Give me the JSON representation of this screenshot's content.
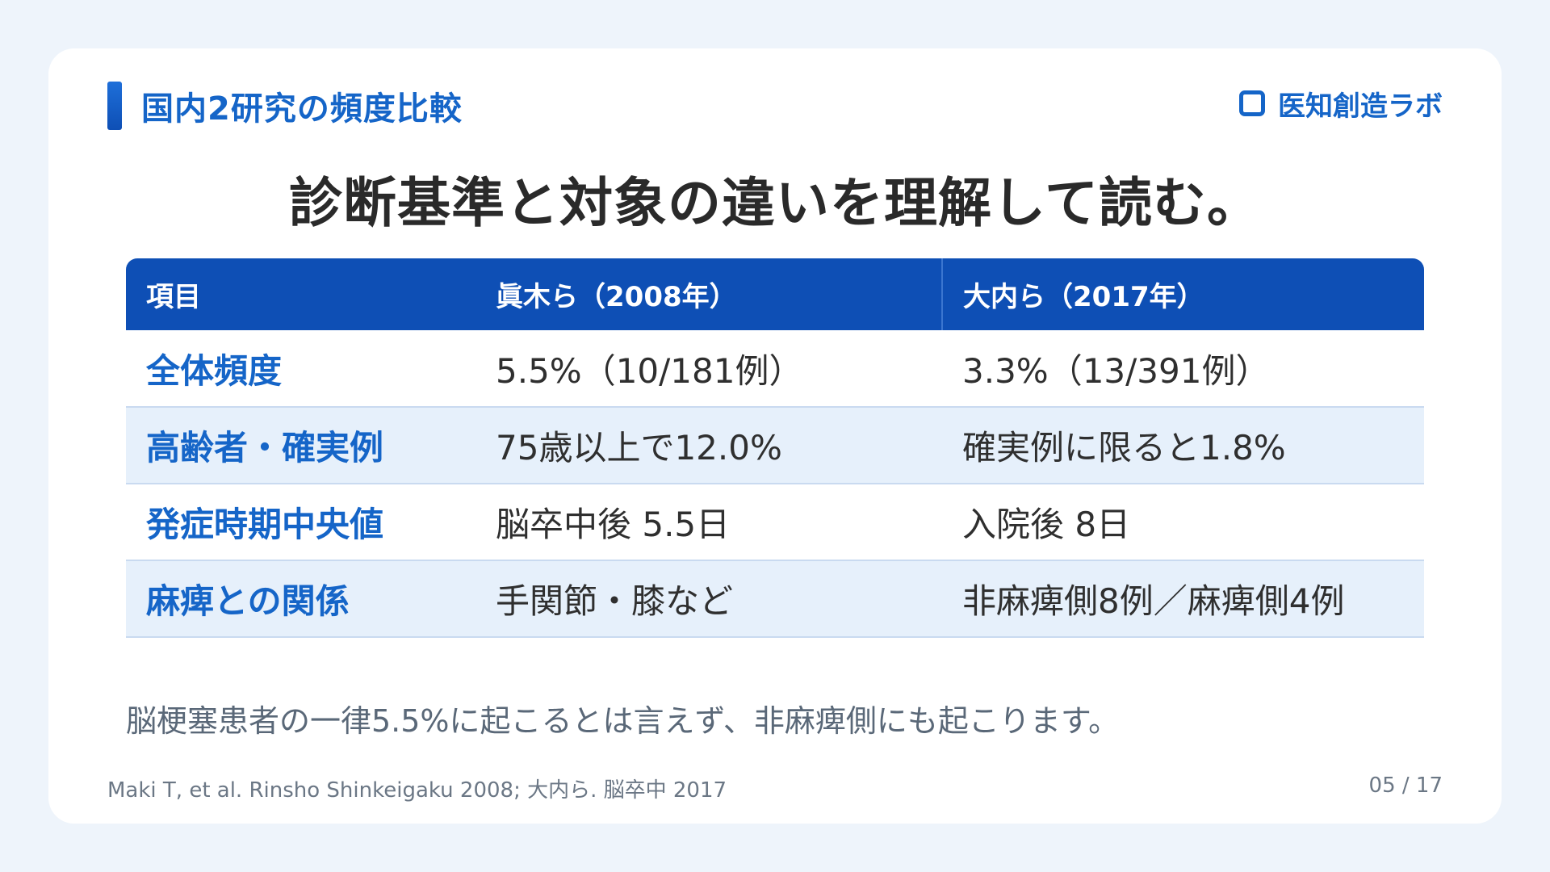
{
  "section": {
    "label": "国内2研究の頻度比較"
  },
  "brand": {
    "label": "医知創造ラボ",
    "icon": "rounded-square-icon",
    "accent": "#1565c8"
  },
  "headline": "診断基準と対象の違いを理解して読む。",
  "table": {
    "headers": [
      "項目",
      "眞木ら（2008年）",
      "大内ら（2017年）"
    ],
    "rows": [
      {
        "label": "全体頻度",
        "a": "5.5%（10/181例）",
        "b": "3.3%（13/391例）"
      },
      {
        "label": "高齢者・確実例",
        "a": "75歳以上で12.0%",
        "b": "確実例に限ると1.8%"
      },
      {
        "label": "発症時期中央値",
        "a": "脳卒中後 5.5日",
        "b": "入院後 8日"
      },
      {
        "label": "麻痺との関係",
        "a": "手関節・膝など",
        "b": "非麻痺側8例／麻痺側4例"
      }
    ],
    "header_color": "#0e4fb5",
    "stripe_color": "#e6f0fb"
  },
  "note": "脳梗塞患者の一律5.5%に起こるとは言えず、非麻痺側にも起こります。",
  "footer": {
    "reference": "Maki T, et al. Rinsho Shinkeigaku 2008; 大内ら. 脳卒中 2017",
    "page": "05 / 17"
  }
}
